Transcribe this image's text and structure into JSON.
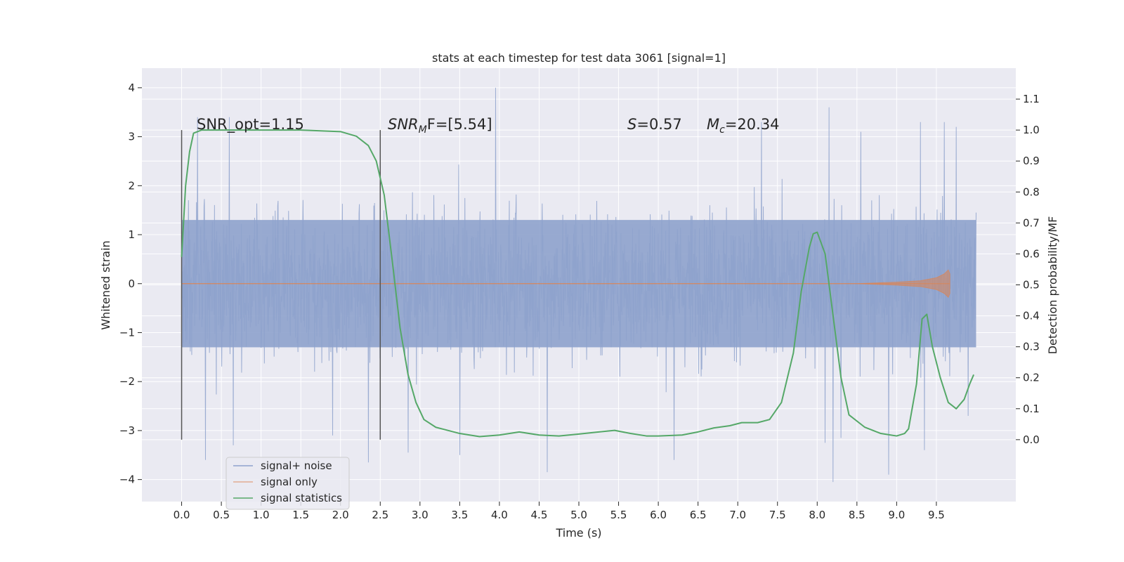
{
  "chart_data": {
    "type": "line",
    "title": "stats at each timestep for test data 3061 [signal=1]",
    "xlabel": "Time (s)",
    "ylabel_left": "Whitened strain",
    "ylabel_right": "Detection probability/MF",
    "xlim": [
      -0.5,
      10.5
    ],
    "ylim_left": [
      -4.45,
      4.4
    ],
    "ylim_right": [
      -0.2,
      1.2
    ],
    "x_ticks": [
      "0.0",
      "0.5",
      "1.0",
      "1.5",
      "2.0",
      "2.5",
      "3.0",
      "3.5",
      "4.0",
      "4.5",
      "5.0",
      "5.5",
      "6.0",
      "6.5",
      "7.0",
      "7.5",
      "8.0",
      "8.5",
      "9.0",
      "9.5"
    ],
    "y_ticks_left": [
      "4",
      "3",
      "2",
      "1",
      "0",
      "−1",
      "−2",
      "−3",
      "−4"
    ],
    "y_ticks_right": [
      "1.1",
      "1.0",
      "0.9",
      "0.8",
      "0.7",
      "0.6",
      "0.5",
      "0.4",
      "0.3",
      "0.2",
      "0.1",
      "0.0"
    ],
    "grid": true,
    "legend_position": "bottom-left",
    "colors": {
      "noise": "#8ea2cc",
      "signal": "#dd8452",
      "stats": "#55a868",
      "background": "#eaeaf2",
      "grid": "#ffffff",
      "marker": "#555555"
    },
    "annotations": {
      "snr_opt": "SNR_opt=1.15",
      "snr_mf_prefix": "SNR",
      "snr_mf_sub": "M",
      "snr_mf_suffix": "F=[5.54]",
      "s_prefix": "S",
      "s_value": "=0.57",
      "mc_prefix": "M",
      "mc_sub": "c",
      "mc_value": "=20.34"
    },
    "vertical_markers_x": [
      0.0,
      2.5
    ],
    "series": [
      {
        "name": "signal+ noise",
        "axis": "left",
        "x_range": [
          0.0,
          10.0
        ],
        "typical_amplitude": 1.3,
        "peak_values": [
          {
            "x": 0.2,
            "y": 3.4
          },
          {
            "x": 0.2,
            "y": -3.1
          },
          {
            "x": 0.3,
            "y": -3.6
          },
          {
            "x": 0.6,
            "y": 3.4
          },
          {
            "x": 0.65,
            "y": -3.3
          },
          {
            "x": 1.9,
            "y": -3.1
          },
          {
            "x": 2.35,
            "y": -3.65
          },
          {
            "x": 2.85,
            "y": -3.45
          },
          {
            "x": 3.5,
            "y": -3.5
          },
          {
            "x": 3.95,
            "y": 4.0
          },
          {
            "x": 4.6,
            "y": -3.85
          },
          {
            "x": 6.2,
            "y": -3.6
          },
          {
            "x": 7.3,
            "y": 3.3
          },
          {
            "x": 8.1,
            "y": -3.25
          },
          {
            "x": 8.15,
            "y": 3.6
          },
          {
            "x": 8.2,
            "y": -4.05
          },
          {
            "x": 8.3,
            "y": -3.15
          },
          {
            "x": 8.55,
            "y": 3.1
          },
          {
            "x": 8.9,
            "y": -3.9
          },
          {
            "x": 9.3,
            "y": 3.3
          },
          {
            "x": 9.35,
            "y": -3.4
          },
          {
            "x": 9.6,
            "y": 3.3
          },
          {
            "x": 9.75,
            "y": 3.2
          },
          {
            "x": 9.9,
            "y": -2.7
          },
          {
            "x": 10.0,
            "y": 1.45
          }
        ]
      },
      {
        "name": "signal only",
        "axis": "left",
        "x": [
          0.0,
          8.5,
          9.0,
          9.3,
          9.5,
          9.6,
          9.65,
          9.67
        ],
        "envelope": [
          0.0,
          0.0,
          0.03,
          0.06,
          0.12,
          0.2,
          0.28,
          0.2
        ]
      },
      {
        "name": "signal statistics",
        "axis": "right",
        "x": [
          0.0,
          0.05,
          0.1,
          0.15,
          0.25,
          0.5,
          1.0,
          1.5,
          2.0,
          2.2,
          2.35,
          2.45,
          2.55,
          2.65,
          2.75,
          2.85,
          2.95,
          3.05,
          3.2,
          3.5,
          3.75,
          4.0,
          4.25,
          4.5,
          4.75,
          5.0,
          5.25,
          5.45,
          5.65,
          5.85,
          6.0,
          6.3,
          6.5,
          6.7,
          6.9,
          7.05,
          7.25,
          7.4,
          7.55,
          7.7,
          7.8,
          7.9,
          7.95,
          8.0,
          8.1,
          8.2,
          8.3,
          8.4,
          8.6,
          8.8,
          9.0,
          9.1,
          9.15,
          9.25,
          9.32,
          9.38,
          9.45,
          9.55,
          9.65,
          9.75,
          9.85,
          9.92,
          9.97
        ],
        "y": [
          0.59,
          0.82,
          0.93,
          0.99,
          1.0,
          1.0,
          1.0,
          1.0,
          0.995,
          0.98,
          0.95,
          0.9,
          0.79,
          0.58,
          0.36,
          0.21,
          0.12,
          0.065,
          0.04,
          0.02,
          0.01,
          0.015,
          0.025,
          0.015,
          0.012,
          0.018,
          0.025,
          0.03,
          0.02,
          0.012,
          0.012,
          0.015,
          0.025,
          0.038,
          0.045,
          0.055,
          0.055,
          0.065,
          0.12,
          0.28,
          0.48,
          0.62,
          0.665,
          0.67,
          0.6,
          0.4,
          0.2,
          0.08,
          0.04,
          0.02,
          0.012,
          0.02,
          0.035,
          0.18,
          0.39,
          0.405,
          0.3,
          0.2,
          0.12,
          0.1,
          0.13,
          0.18,
          0.21
        ]
      }
    ]
  }
}
